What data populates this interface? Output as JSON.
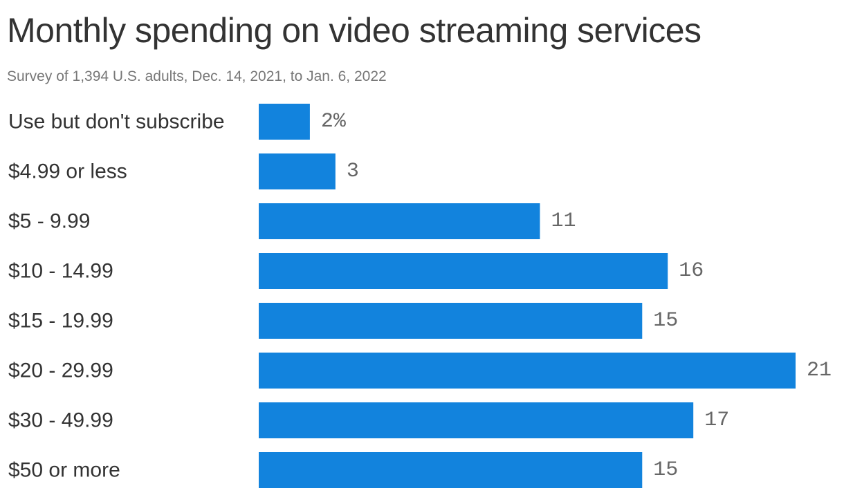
{
  "title": "Monthly spending on video streaming services",
  "subtitle": "Survey of 1,394 U.S. adults, Dec. 14, 2021, to Jan. 6, 2022",
  "chart_data": {
    "type": "bar",
    "orientation": "horizontal",
    "categories": [
      "Use but don't subscribe",
      "$4.99 or less",
      "$5 - 9.99",
      "$10 - 14.99",
      "$15 - 19.99",
      "$20 - 29.99",
      "$30 - 49.99",
      "$50 or more"
    ],
    "values": [
      2,
      3,
      11,
      16,
      15,
      21,
      17,
      15
    ],
    "value_labels": [
      "2%",
      "3",
      "11",
      "16",
      "15",
      "21",
      "17",
      "15"
    ],
    "unit": "%",
    "bar_color": "#1283dd",
    "xlim": [
      0,
      21
    ]
  }
}
